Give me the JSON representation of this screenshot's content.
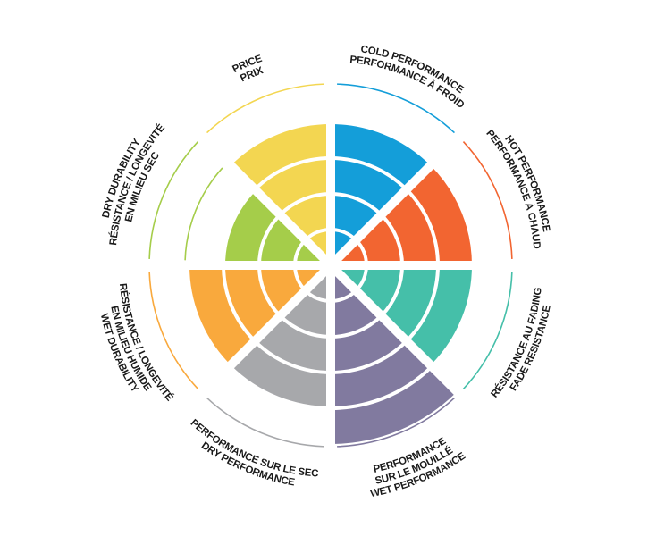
{
  "chart_data": {
    "type": "polar-area",
    "scale_max": 5,
    "grid": true,
    "categories": [
      {
        "key": "cold",
        "lines": [
          "COLD PERFORMANCE",
          "PERFORMANCE À FROID"
        ],
        "value": 4,
        "color": "#149ed9"
      },
      {
        "key": "hot",
        "lines": [
          "HOT PERFORMANCE",
          "PERFORMANCE À CHAUD"
        ],
        "value": 4,
        "color": "#f26531"
      },
      {
        "key": "fade",
        "lines": [
          "RÉSISTANCE AU FADING",
          "FADE RESISTANCE"
        ],
        "value": 4,
        "color": "#45bfa9"
      },
      {
        "key": "wet-performance",
        "lines": [
          "PERFORMANCE",
          "SUR LE MOUILLÉ",
          "WET PERFORMANCE"
        ],
        "value": 5,
        "color": "#817a9f"
      },
      {
        "key": "dry-performance",
        "lines": [
          "PERFORMANCE SUR LE SEC",
          "DRY PERFORMANCE"
        ],
        "value": 4,
        "color": "#a7a8ab"
      },
      {
        "key": "wet-durability",
        "lines": [
          "RÉSISTANCE / LONGEVITÉ",
          "EN MILIEU HUMIDE",
          "WET DURABILITY"
        ],
        "value": 4,
        "color": "#f9a93d"
      },
      {
        "key": "dry-durability",
        "lines": [
          "DRY DURABILITY",
          "RÉSISTANCE / LONGEVITÉ",
          "EN MILIEU SEC"
        ],
        "value": 3,
        "color": "#a5cd4a"
      },
      {
        "key": "price",
        "lines": [
          "PRICE",
          "PRIX"
        ],
        "value": 4,
        "color": "#f3d651"
      }
    ]
  }
}
